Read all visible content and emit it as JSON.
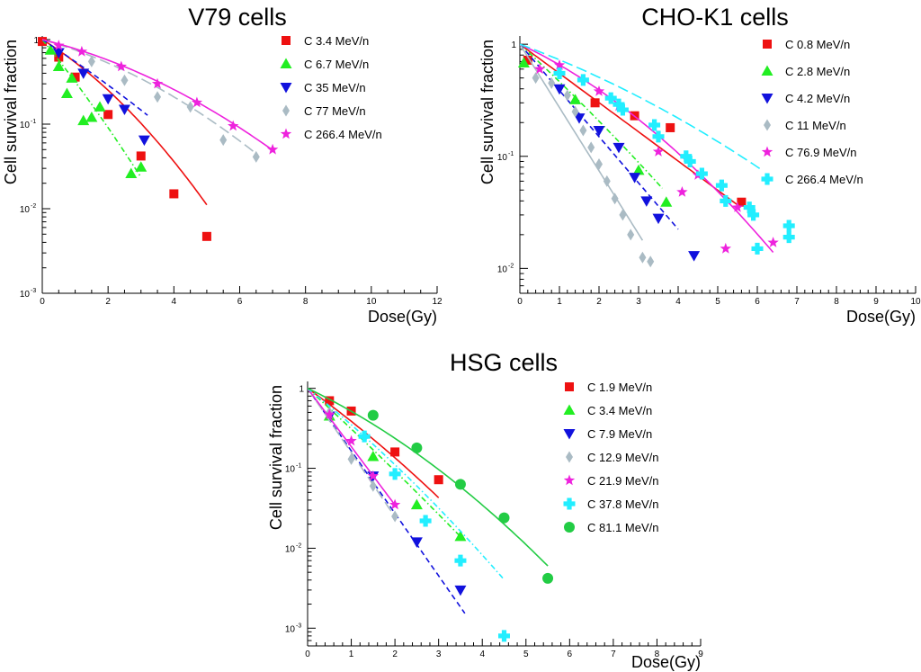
{
  "chart_data": [
    {
      "id": "v79",
      "type": "scatter",
      "title": "V79 cells",
      "xlabel": "Dose(Gy)",
      "ylabel": "Cell survival fraction",
      "xlim": [
        0,
        12
      ],
      "ylim": [
        0.001,
        1
      ],
      "yscale": "log",
      "xticks": [
        "0",
        "2",
        "4",
        "6",
        "8",
        "10",
        "12"
      ],
      "yticks": [
        {
          "value": 1,
          "label": "1"
        },
        {
          "value": 0.1,
          "label": "10",
          "exp": "-1"
        },
        {
          "value": 0.01,
          "label": "10",
          "exp": "-2"
        },
        {
          "value": 0.001,
          "label": "10",
          "exp": "-3"
        }
      ],
      "series": [
        {
          "name": "C 3.4 MeV/n",
          "marker": "square",
          "color": "#ee1111",
          "line": "solid",
          "x": [
            0,
            0.5,
            1,
            2,
            3,
            4,
            5
          ],
          "y": [
            0.95,
            0.62,
            0.36,
            0.13,
            0.042,
            0.015,
            0.0047
          ],
          "fit": {
            "alpha": 0.55,
            "beta": 0.07,
            "xmax": 5
          }
        },
        {
          "name": "C 6.7 MeV/n",
          "marker": "triangle-up",
          "color": "#22ee22",
          "line": "dashdot",
          "x": [
            0.25,
            0.5,
            0.75,
            0.9,
            1.25,
            1.5,
            1.75,
            2.7,
            3
          ],
          "y": [
            0.75,
            0.48,
            0.23,
            0.35,
            0.11,
            0.12,
            0.16,
            0.026,
            0.031
          ],
          "fit": {
            "alpha": 1.1,
            "beta": 0.05,
            "xmax": 3
          }
        },
        {
          "name": "C 35 MeV/n",
          "marker": "triangle-down",
          "color": "#1111dd",
          "line": "dashed",
          "x": [
            0.5,
            1.25,
            2,
            2.5,
            3.1
          ],
          "y": [
            0.7,
            0.4,
            0.2,
            0.15,
            0.065
          ],
          "fit": {
            "alpha": 0.58,
            "beta": 0.02,
            "xmax": 3.2
          }
        },
        {
          "name": "C 77 MeV/n",
          "marker": "diamond",
          "color": "#aabbc4",
          "line": "longdash",
          "x": [
            1.5,
            2.5,
            3.5,
            4.5,
            5.5,
            6.5
          ],
          "y": [
            0.55,
            0.33,
            0.21,
            0.16,
            0.065,
            0.041
          ],
          "fit": {
            "alpha": 0.25,
            "beta": 0.035,
            "xmax": 6.5
          }
        },
        {
          "name": "C 266.4 MeV/n",
          "marker": "star",
          "color": "#ee22dd",
          "line": "solid",
          "x": [
            0.5,
            1.2,
            2.4,
            3.5,
            4.7,
            5.8,
            7
          ],
          "y": [
            0.85,
            0.72,
            0.48,
            0.3,
            0.18,
            0.095,
            0.05
          ],
          "fit": {
            "alpha": 0.22,
            "beta": 0.03,
            "xmax": 7
          }
        }
      ]
    },
    {
      "id": "cho",
      "type": "scatter",
      "title": "CHO-K1 cells",
      "xlabel": "Dose(Gy)",
      "ylabel": "Cell survival fraction",
      "xlim": [
        0,
        10
      ],
      "ylim": [
        0.006,
        1.1
      ],
      "yscale": "log",
      "xticks": [
        "0",
        "1",
        "2",
        "3",
        "4",
        "5",
        "6",
        "7",
        "8",
        "9",
        "10"
      ],
      "yticks": [
        {
          "value": 1,
          "label": "1"
        },
        {
          "value": 0.1,
          "label": "10",
          "exp": "-1"
        },
        {
          "value": 0.01,
          "label": "10",
          "exp": "-2"
        }
      ],
      "series": [
        {
          "name": "C 0.8 MeV/n",
          "marker": "square",
          "color": "#ee1111",
          "line": "solid",
          "x": [
            0.2,
            1.9,
            2.9,
            3.8,
            5.6
          ],
          "y": [
            0.72,
            0.3,
            0.23,
            0.18,
            0.039
          ],
          "fit": {
            "alpha": 0.6,
            "beta": 0.0,
            "xmax": 5.5
          }
        },
        {
          "name": "C 2.8 MeV/n",
          "marker": "triangle-up",
          "color": "#22ee22",
          "line": "dashdot",
          "x": [
            0.1,
            1.4,
            3,
            3.7
          ],
          "y": [
            0.68,
            0.32,
            0.075,
            0.039
          ],
          "fit": {
            "alpha": 0.75,
            "beta": 0.02,
            "xmax": 3.6
          }
        },
        {
          "name": "C 4.2 MeV/n",
          "marker": "triangle-down",
          "color": "#1111dd",
          "line": "dashed",
          "x": [
            1,
            1.5,
            2,
            2.5,
            2.9,
            3.2,
            3.5,
            4.4
          ],
          "y": [
            0.4,
            0.22,
            0.17,
            0.12,
            0.065,
            0.04,
            0.028,
            0.013
          ],
          "fit": {
            "alpha": 0.95,
            "beta": 0.0,
            "xmax": 4.0
          }
        },
        {
          "name": "C 11 MeV/n",
          "marker": "diamond",
          "color": "#aabbc4",
          "line": "solid",
          "x": [
            0.4,
            0.8,
            1.2,
            1.4,
            1.6,
            1.8,
            2.0,
            2.2,
            2.4,
            2.6,
            2.8,
            3.1,
            3.3
          ],
          "y": [
            0.5,
            0.45,
            0.35,
            0.25,
            0.17,
            0.12,
            0.085,
            0.06,
            0.042,
            0.03,
            0.02,
            0.0125,
            0.0115
          ],
          "fit": {
            "alpha": 1.3,
            "beta": 0.0,
            "xmax": 3.1
          }
        },
        {
          "name": "C 76.9 MeV/n",
          "marker": "star",
          "color": "#ee22dd",
          "line": "solid",
          "x": [
            0.5,
            1,
            2,
            2.5,
            3.5,
            4.1,
            4.5,
            5.2,
            5.5,
            6.4
          ],
          "y": [
            0.6,
            0.65,
            0.38,
            0.28,
            0.11,
            0.048,
            0.068,
            0.015,
            0.035,
            0.017
          ],
          "fit": {
            "alpha": 0.38,
            "beta": 0.045,
            "xmax": 6.4
          }
        },
        {
          "name": "C 266.4 MeV/n",
          "marker": "cross",
          "color": "#22eeff",
          "line": "longdash",
          "x": [
            1,
            1.6,
            2.3,
            2.5,
            2.6,
            3.4,
            3.5,
            4.2,
            4.3,
            4.6,
            5.1,
            5.2,
            5.8,
            5.9,
            6,
            6.8,
            6.8
          ],
          "y": [
            0.55,
            0.48,
            0.33,
            0.29,
            0.26,
            0.19,
            0.15,
            0.1,
            0.09,
            0.07,
            0.055,
            0.04,
            0.035,
            0.03,
            0.015,
            0.024,
            0.019
          ],
          "fit": {
            "alpha": 0.3,
            "beta": 0.02,
            "xmax": 6.1
          }
        }
      ]
    },
    {
      "id": "hsg",
      "type": "scatter",
      "title": "HSG cells",
      "xlabel": "Dose(Gy)",
      "ylabel": "Cell survival fraction",
      "xlim": [
        0,
        9
      ],
      "ylim": [
        0.0006,
        1.1
      ],
      "yscale": "log",
      "xticks": [
        "0",
        "1",
        "2",
        "3",
        "4",
        "5",
        "6",
        "7",
        "8",
        "9"
      ],
      "yticks": [
        {
          "value": 1,
          "label": "1"
        },
        {
          "value": 0.1,
          "label": "10",
          "exp": "-1"
        },
        {
          "value": 0.01,
          "label": "10",
          "exp": "-2"
        },
        {
          "value": 0.001,
          "label": "10",
          "exp": "-3"
        }
      ],
      "series": [
        {
          "name": "C 1.9 MeV/n",
          "marker": "square",
          "color": "#ee1111",
          "line": "solid",
          "x": [
            0.5,
            1,
            2,
            3
          ],
          "y": [
            0.7,
            0.52,
            0.16,
            0.072
          ],
          "fit": {
            "alpha": 0.9,
            "beta": 0.05,
            "xmax": 3.0
          }
        },
        {
          "name": "C 3.4 MeV/n",
          "marker": "triangle-up",
          "color": "#22ee22",
          "line": "dashdot",
          "x": [
            0.5,
            1.5,
            2.5,
            3.5
          ],
          "y": [
            0.45,
            0.14,
            0.035,
            0.014
          ],
          "fit": {
            "alpha": 1.15,
            "beta": 0.02,
            "xmax": 3.5
          }
        },
        {
          "name": "C 7.9 MeV/n",
          "marker": "triangle-down",
          "color": "#1111dd",
          "line": "dashed",
          "x": [
            0.5,
            1.5,
            2.5,
            3.5
          ],
          "y": [
            0.45,
            0.08,
            0.012,
            0.003
          ],
          "fit": {
            "alpha": 1.8,
            "beta": 0.0,
            "xmax": 3.6
          }
        },
        {
          "name": "C 12.9 MeV/n",
          "marker": "diamond",
          "color": "#aabbc4",
          "line": "longdash",
          "x": [
            0.5,
            1,
            1.5,
            2
          ],
          "y": [
            0.5,
            0.13,
            0.06,
            0.025
          ],
          "fit": {
            "alpha": 1.85,
            "beta": 0.0,
            "xmax": 2.0
          }
        },
        {
          "name": "C 21.9 MeV/n",
          "marker": "star",
          "color": "#ee22dd",
          "line": "solid",
          "x": [
            0.5,
            1,
            1.5,
            2
          ],
          "y": [
            0.47,
            0.22,
            0.08,
            0.035
          ],
          "fit": {
            "alpha": 1.68,
            "beta": 0.0,
            "xmax": 2.0
          }
        },
        {
          "name": "C 37.8 MeV/n",
          "marker": "cross",
          "color": "#22eeff",
          "line": "dashdot",
          "x": [
            1.3,
            2,
            2.7,
            3.5,
            4.5
          ],
          "y": [
            0.25,
            0.085,
            0.022,
            0.007,
            0.0008
          ],
          "fit": {
            "alpha": 1.0,
            "beta": 0.05,
            "xmax": 4.5
          }
        },
        {
          "name": "C 81.1 MeV/n",
          "marker": "circle",
          "color": "#22cc44",
          "line": "solid",
          "x": [
            1.5,
            2.5,
            3.5,
            4.5,
            5.5
          ],
          "y": [
            0.46,
            0.18,
            0.063,
            0.024,
            0.0042
          ],
          "fit": {
            "alpha": 0.6,
            "beta": 0.06,
            "xmax": 5.5
          }
        }
      ]
    }
  ]
}
